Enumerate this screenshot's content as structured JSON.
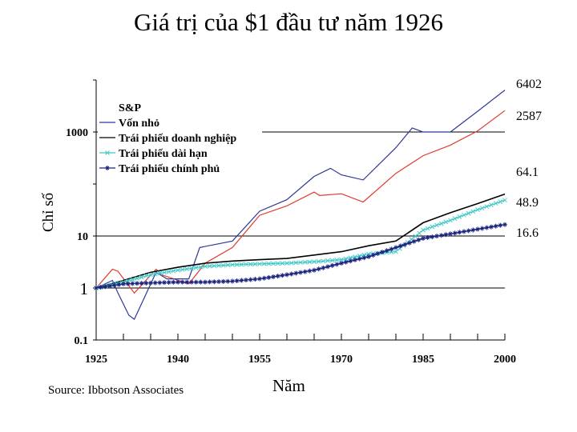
{
  "title": "Giá trị của $1 đầu tư năm 1926",
  "source": "Source: Ibbotson Associates",
  "chart_data": {
    "type": "line",
    "title": "Giá trị của $1 đầu tư năm 1926",
    "xlabel": "Năm",
    "ylabel": "Chỉ số",
    "yscale": "log",
    "xlim": [
      1925,
      2000
    ],
    "ylim": [
      0.1,
      10000
    ],
    "x_ticks": [
      "1925",
      "1940",
      "1955",
      "1970",
      "1985",
      "2000"
    ],
    "y_ticks": [
      {
        "value": 0.1,
        "label": "0.1",
        "bold": true
      },
      {
        "value": 1,
        "label": "1",
        "bold": false
      },
      {
        "value": 10,
        "label": "10",
        "bold": true
      },
      {
        "value": 1000,
        "label": "1000",
        "bold": true
      }
    ],
    "grid": "horizontal",
    "legend_position": "top-left",
    "end_labels": [
      "6402",
      "2587",
      "64.1",
      "48.9",
      "16.6"
    ],
    "series": [
      {
        "name": "S&P",
        "color": "#e03a2e",
        "marker": "none",
        "x": [
          1925,
          1928,
          1929,
          1932,
          1936,
          1937,
          1942,
          1945,
          1950,
          1955,
          1960,
          1965,
          1966,
          1970,
          1974,
          1980,
          1985,
          1990,
          1995,
          2000
        ],
        "y": [
          1,
          2.3,
          2.1,
          0.8,
          2.3,
          1.8,
          1.2,
          3.0,
          6.0,
          25,
          38,
          70,
          60,
          65,
          45,
          160,
          350,
          560,
          1050,
          2587
        ]
      },
      {
        "name": "Vốn nhỏ",
        "color": "#2d3796",
        "marker": "none",
        "x": [
          1925,
          1928,
          1929,
          1931,
          1932,
          1936,
          1938,
          1942,
          1944,
          1950,
          1955,
          1960,
          1965,
          1968,
          1970,
          1974,
          1980,
          1983,
          1985,
          1990,
          1995,
          2000
        ],
        "y": [
          1,
          1.4,
          0.8,
          0.3,
          0.25,
          2.0,
          1.5,
          1.5,
          6.0,
          8.0,
          30,
          50,
          140,
          200,
          150,
          120,
          500,
          1200,
          1000,
          1000,
          2500,
          6402
        ]
      },
      {
        "name": "Trái phiếu doanh nghiệp",
        "color": "#000000",
        "marker": "none",
        "x": [
          1925,
          1930,
          1935,
          1940,
          1945,
          1950,
          1955,
          1960,
          1965,
          1970,
          1975,
          1980,
          1985,
          1990,
          1995,
          2000
        ],
        "y": [
          1,
          1.4,
          2.0,
          2.5,
          3.0,
          3.3,
          3.5,
          3.7,
          4.3,
          5.0,
          6.5,
          8.0,
          18,
          28,
          42,
          64.1
        ]
      },
      {
        "name": "Trái phiếu dài hạn",
        "color": "#40c8c8",
        "marker": "x",
        "x": [
          1925,
          1930,
          1935,
          1940,
          1945,
          1950,
          1955,
          1960,
          1965,
          1970,
          1975,
          1980,
          1985,
          1990,
          1995,
          2000
        ],
        "y": [
          1,
          1.3,
          1.8,
          2.2,
          2.6,
          2.8,
          2.9,
          3.0,
          3.2,
          3.5,
          4.5,
          5.0,
          13,
          20,
          32,
          48.9
        ]
      },
      {
        "name": "Trái phiếu chính phủ",
        "color": "#1a237e",
        "marker": "star",
        "x": [
          1925,
          1930,
          1935,
          1940,
          1945,
          1950,
          1955,
          1960,
          1965,
          1970,
          1975,
          1980,
          1985,
          1990,
          1995,
          2000
        ],
        "y": [
          1,
          1.2,
          1.25,
          1.3,
          1.3,
          1.35,
          1.5,
          1.8,
          2.2,
          3.0,
          4.0,
          6.0,
          9.0,
          11,
          13.5,
          16.6
        ]
      }
    ]
  }
}
